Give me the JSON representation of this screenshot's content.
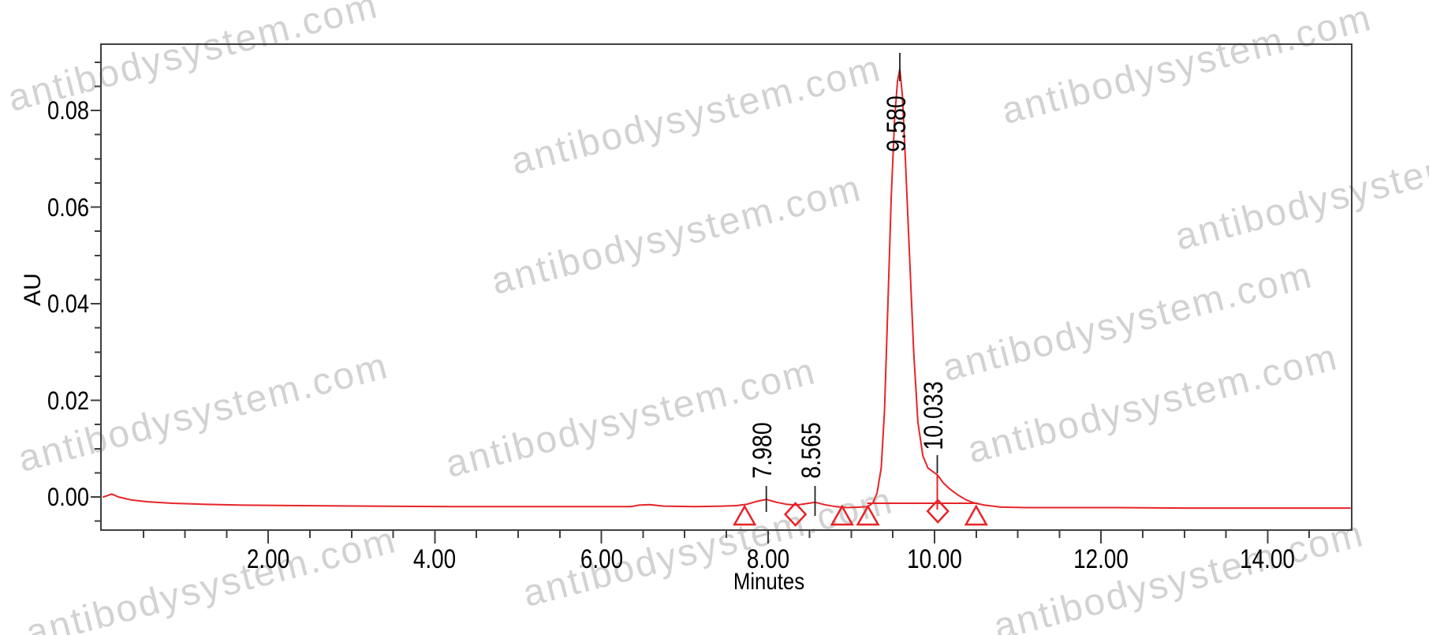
{
  "watermark": {
    "text": "antibodysystem.com",
    "color": "#d2d2d2"
  },
  "chart_data": {
    "type": "line",
    "subtype": "hplc-chromatogram",
    "title": "",
    "xlabel": "Minutes",
    "ylabel": "AU",
    "xlim": [
      0,
      15
    ],
    "ylim": [
      -0.007,
      0.094
    ],
    "grid": false,
    "trace_color": "#e62428",
    "axis_color": "#3f3f3f",
    "text_color": "#000000",
    "x_major_ticks": [
      {
        "t": 2,
        "label": "2.00"
      },
      {
        "t": 4,
        "label": "4.00"
      },
      {
        "t": 6,
        "label": "6.00"
      },
      {
        "t": 8,
        "label": "8.00"
      },
      {
        "t": 10,
        "label": "10.00"
      },
      {
        "t": 12,
        "label": "12.00"
      },
      {
        "t": 14,
        "label": "14.00"
      }
    ],
    "x_minor_step": 0.5,
    "y_major_ticks": [
      {
        "v": 0.0,
        "label": "0.00"
      },
      {
        "v": 0.02,
        "label": "0.02"
      },
      {
        "v": 0.04,
        "label": "0.04"
      },
      {
        "v": 0.06,
        "label": "0.06"
      },
      {
        "v": 0.08,
        "label": "0.08"
      }
    ],
    "y_minor_step": 0.005,
    "y_minor_range": [
      -0.005,
      0.09
    ],
    "peaks": [
      {
        "label": "7.980",
        "rt": 7.98,
        "apex_au": -0.0005
      },
      {
        "label": "8.565",
        "rt": 8.565,
        "apex_au": -0.0011
      },
      {
        "label": "9.580",
        "rt": 9.58,
        "apex_au": 0.0886
      },
      {
        "label": "10.033",
        "rt": 10.033,
        "apex_au": 0.0046
      }
    ],
    "peak_markers": {
      "triangles_t": [
        7.72,
        8.89,
        9.2,
        10.5
      ],
      "diamonds_t": [
        8.33,
        10.04
      ]
    },
    "integration_baseline": {
      "t1": 9.19,
      "t2": 10.52,
      "au": -0.0013
    },
    "trace": [
      [
        0.02,
        0.0
      ],
      [
        0.07,
        0.0003
      ],
      [
        0.12,
        0.0006
      ],
      [
        0.2,
        0.0
      ],
      [
        0.35,
        -0.0006
      ],
      [
        0.55,
        -0.001
      ],
      [
        0.85,
        -0.0013
      ],
      [
        1.2,
        -0.0015
      ],
      [
        1.7,
        -0.0017
      ],
      [
        2.4,
        -0.0018
      ],
      [
        3.2,
        -0.0019
      ],
      [
        4.2,
        -0.002
      ],
      [
        5.2,
        -0.002
      ],
      [
        6.0,
        -0.002
      ],
      [
        6.35,
        -0.002
      ],
      [
        6.45,
        -0.0017
      ],
      [
        6.58,
        -0.0016
      ],
      [
        6.75,
        -0.0019
      ],
      [
        7.1,
        -0.002
      ],
      [
        7.45,
        -0.0019
      ],
      [
        7.62,
        -0.0018
      ],
      [
        7.75,
        -0.0015
      ],
      [
        7.87,
        -0.0009
      ],
      [
        7.98,
        -0.0005
      ],
      [
        8.1,
        -0.0011
      ],
      [
        8.22,
        -0.0015
      ],
      [
        8.34,
        -0.0017
      ],
      [
        8.45,
        -0.0014
      ],
      [
        8.565,
        -0.0011
      ],
      [
        8.68,
        -0.0016
      ],
      [
        8.82,
        -0.002
      ],
      [
        8.95,
        -0.0022
      ],
      [
        9.1,
        -0.0021
      ],
      [
        9.2,
        -0.002
      ],
      [
        9.26,
        -0.0012
      ],
      [
        9.31,
        0.0008
      ],
      [
        9.36,
        0.006
      ],
      [
        9.4,
        0.018
      ],
      [
        9.44,
        0.04
      ],
      [
        9.48,
        0.062
      ],
      [
        9.52,
        0.078
      ],
      [
        9.555,
        0.086
      ],
      [
        9.583,
        0.0886
      ],
      [
        9.615,
        0.083
      ],
      [
        9.65,
        0.07
      ],
      [
        9.7,
        0.05
      ],
      [
        9.75,
        0.03
      ],
      [
        9.8,
        0.0155
      ],
      [
        9.86,
        0.0085
      ],
      [
        9.92,
        0.006
      ],
      [
        10.0,
        0.005
      ],
      [
        10.033,
        0.0046
      ],
      [
        10.1,
        0.003
      ],
      [
        10.18,
        0.0017
      ],
      [
        10.28,
        0.0004
      ],
      [
        10.38,
        -0.0006
      ],
      [
        10.47,
        -0.0012
      ],
      [
        10.6,
        -0.0017
      ],
      [
        10.8,
        -0.0021
      ],
      [
        11.1,
        -0.0022
      ],
      [
        11.6,
        -0.0022
      ],
      [
        12.2,
        -0.0022
      ],
      [
        13.0,
        -0.0023
      ],
      [
        14.0,
        -0.0023
      ],
      [
        14.99,
        -0.0023
      ]
    ]
  }
}
